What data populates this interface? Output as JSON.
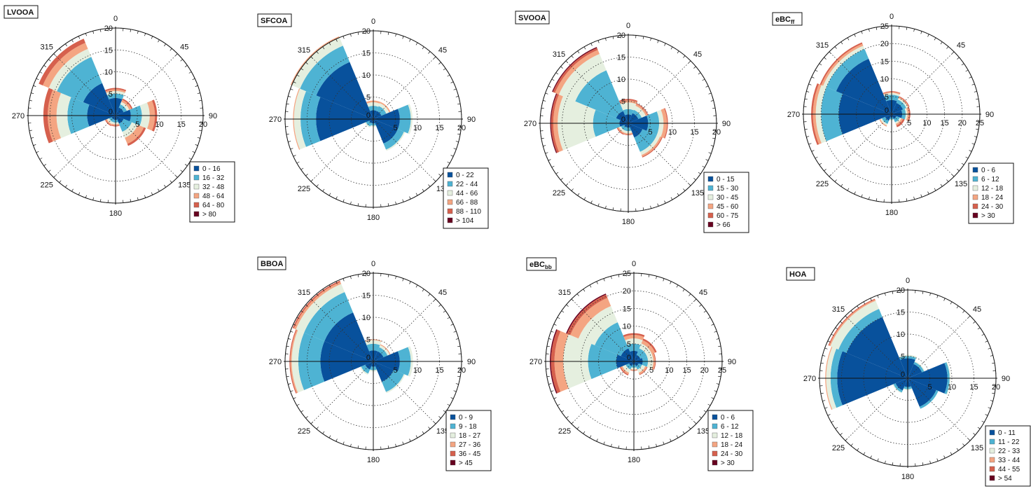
{
  "palette": [
    "#08519c",
    "#4eb3d3",
    "#e5efdf",
    "#f4a582",
    "#d6604d",
    "#67001f"
  ],
  "chart_data": [
    {
      "type": "polar-stacked-bar",
      "title": "LVOOA",
      "radial_ticks": [
        0,
        5,
        10,
        15,
        20
      ],
      "rmax": 20,
      "angle_labels": [
        "0",
        "45",
        "90",
        "135",
        "180",
        "225",
        "270",
        "315"
      ],
      "legend": [
        "0 - 16",
        "16 - 32",
        "32 - 48",
        "48 - 64",
        "64 - 80",
        "> 80"
      ],
      "sectors": [
        {
          "dir": 0,
          "values": [
            4.0,
            1.0,
            0.6,
            0.4,
            0.3,
            0
          ]
        },
        {
          "dir": 45,
          "values": [
            2.0,
            0.8,
            0.6,
            0.5,
            0.3,
            0
          ]
        },
        {
          "dir": 90,
          "values": [
            3.5,
            2.5,
            1.8,
            1.2,
            0.5,
            0
          ]
        },
        {
          "dir": 135,
          "values": [
            2.0,
            2.0,
            1.5,
            1.5,
            0.5,
            0
          ]
        },
        {
          "dir": 180,
          "values": [
            1.0,
            0.6,
            0.4,
            0.3,
            0.2,
            0
          ]
        },
        {
          "dir": 225,
          "values": [
            1.0,
            0.6,
            0.5,
            0.3,
            0.2,
            0
          ]
        },
        {
          "dir": 270,
          "values": [
            6.5,
            4.5,
            2.5,
            2.0,
            1.0,
            0
          ]
        },
        {
          "dir": 315,
          "values": [
            8.0,
            6.5,
            2.0,
            1.5,
            1.0,
            0
          ]
        }
      ]
    },
    {
      "type": "polar-stacked-bar",
      "title": "SFCOA",
      "radial_ticks": [
        0,
        5,
        10,
        15,
        20
      ],
      "rmax": 20,
      "angle_labels": [
        "0",
        "45",
        "90",
        "135",
        "180",
        "225",
        "270",
        "315"
      ],
      "legend": [
        "0 - 22",
        "22 - 44",
        "44 - 66",
        "66 - 88",
        "88 - 110",
        "> 104"
      ],
      "sectors": [
        {
          "dir": 0,
          "values": [
            2.0,
            1.0,
            0.8,
            0.4,
            0,
            0
          ]
        },
        {
          "dir": 45,
          "values": [
            2.0,
            1.2,
            0.7,
            0.3,
            0,
            0
          ]
        },
        {
          "dir": 90,
          "values": [
            6.0,
            2.5,
            0.4,
            0,
            0,
            0
          ]
        },
        {
          "dir": 135,
          "values": [
            6.0,
            1.5,
            0.3,
            0,
            0,
            0
          ]
        },
        {
          "dir": 180,
          "values": [
            1.0,
            0.5,
            0.3,
            0,
            0,
            0
          ]
        },
        {
          "dir": 225,
          "values": [
            1.0,
            0.8,
            0.3,
            0,
            0,
            0
          ]
        },
        {
          "dir": 270,
          "values": [
            13.0,
            3.5,
            1.5,
            0.2,
            0,
            0
          ]
        },
        {
          "dir": 315,
          "values": [
            14.0,
            4.0,
            2.0,
            0.3,
            0,
            0
          ]
        }
      ]
    },
    {
      "type": "polar-stacked-bar",
      "title": "SVOOA",
      "radial_ticks": [
        0,
        5,
        10,
        15,
        20
      ],
      "rmax": 20,
      "angle_labels": [
        "0",
        "45",
        "90",
        "135",
        "180",
        "225",
        "270",
        "315"
      ],
      "legend": [
        "0 - 15",
        "15 - 30",
        "30 - 45",
        "45 - 60",
        "60 - 75",
        "> 66"
      ],
      "sectors": [
        {
          "dir": 0,
          "values": [
            2.0,
            1.2,
            1.5,
            0.5,
            0.3,
            0
          ]
        },
        {
          "dir": 45,
          "values": [
            2.5,
            0.8,
            1.0,
            0.4,
            0.2,
            0
          ]
        },
        {
          "dir": 90,
          "values": [
            4.5,
            2.5,
            1.0,
            0.8,
            0.2,
            0
          ]
        },
        {
          "dir": 135,
          "values": [
            3.5,
            3.5,
            0.8,
            0.4,
            0.2,
            0
          ]
        },
        {
          "dir": 180,
          "values": [
            1.0,
            0.8,
            0.5,
            0.3,
            0.1,
            0
          ]
        },
        {
          "dir": 225,
          "values": [
            1.0,
            0.8,
            0.5,
            0.3,
            0.2,
            0
          ]
        },
        {
          "dir": 270,
          "values": [
            2.0,
            6.0,
            8.0,
            1.0,
            0.5,
            0.2
          ]
        },
        {
          "dir": 315,
          "values": [
            3.0,
            10.0,
            4.0,
            1.0,
            0.5,
            0.2
          ]
        }
      ]
    },
    {
      "type": "polar-stacked-bar",
      "title": "eBC",
      "title_sub": "ff",
      "radial_ticks": [
        0,
        5,
        10,
        15,
        20,
        25
      ],
      "rmax": 25,
      "angle_labels": [
        "0",
        "45",
        "90",
        "135",
        "180",
        "225",
        "270",
        "315"
      ],
      "legend": [
        "0 - 6",
        "6 - 12",
        "12 - 18",
        "18 - 24",
        "24 - 30",
        "> 30"
      ],
      "sectors": [
        {
          "dir": 0,
          "values": [
            4.0,
            1.5,
            0.5,
            0.3,
            0.2,
            0
          ]
        },
        {
          "dir": 45,
          "values": [
            3.5,
            1.0,
            0.5,
            0.3,
            0.2,
            0
          ]
        },
        {
          "dir": 90,
          "values": [
            3.0,
            1.0,
            0.5,
            0.5,
            0.3,
            0
          ]
        },
        {
          "dir": 135,
          "values": [
            1.5,
            1.0,
            0.5,
            0.5,
            0.5,
            0
          ]
        },
        {
          "dir": 180,
          "values": [
            1.0,
            0.5,
            0.3,
            0,
            0,
            0
          ]
        },
        {
          "dir": 225,
          "values": [
            2.0,
            1.0,
            0.5,
            0.3,
            0,
            0
          ]
        },
        {
          "dir": 270,
          "values": [
            15.0,
            5.0,
            1.5,
            0.8,
            0.5,
            0
          ]
        },
        {
          "dir": 315,
          "values": [
            17.0,
            3.0,
            1.0,
            0.6,
            0.4,
            0
          ]
        }
      ]
    },
    {
      "type": "polar-stacked-bar",
      "title": "BBOA",
      "radial_ticks": [
        0,
        5,
        10,
        15,
        20
      ],
      "rmax": 20,
      "angle_labels": [
        "0",
        "45",
        "90",
        "135",
        "180",
        "225",
        "270",
        "315"
      ],
      "legend": [
        "0 - 9",
        "9 - 18",
        "18 - 27",
        "27 - 36",
        "36 - 45",
        "> 45"
      ],
      "sectors": [
        {
          "dir": 0,
          "values": [
            2.5,
            1.5,
            0.8,
            0.2,
            0,
            0
          ]
        },
        {
          "dir": 45,
          "values": [
            2.5,
            1.0,
            0.5,
            0.2,
            0,
            0
          ]
        },
        {
          "dir": 90,
          "values": [
            6.0,
            2.5,
            0.5,
            0,
            0,
            0
          ]
        },
        {
          "dir": 135,
          "values": [
            5.0,
            2.5,
            0.3,
            0,
            0,
            0
          ]
        },
        {
          "dir": 180,
          "values": [
            1.2,
            0.8,
            0.3,
            0,
            0,
            0
          ]
        },
        {
          "dir": 225,
          "values": [
            2.0,
            1.0,
            0.3,
            0,
            0,
            0
          ]
        },
        {
          "dir": 270,
          "values": [
            12.0,
            5.0,
            1.5,
            0.3,
            0.2,
            0
          ]
        },
        {
          "dir": 315,
          "values": [
            12.0,
            5.0,
            2.0,
            0.5,
            0.3,
            0
          ]
        }
      ]
    },
    {
      "type": "polar-stacked-bar",
      "title": "eBC",
      "title_sub": "bb",
      "radial_ticks": [
        0,
        5,
        10,
        15,
        20,
        25
      ],
      "rmax": 25,
      "angle_labels": [
        "0",
        "45",
        "90",
        "135",
        "180",
        "225",
        "270",
        "315"
      ],
      "legend": [
        "0 - 6",
        "6 - 12",
        "12 - 18",
        "18 - 24",
        "24 - 30",
        "> 30"
      ],
      "sectors": [
        {
          "dir": 0,
          "values": [
            3.0,
            2.0,
            1.5,
            1.0,
            0.5,
            0
          ]
        },
        {
          "dir": 45,
          "values": [
            2.0,
            2.0,
            1.5,
            1.0,
            0.5,
            0
          ]
        },
        {
          "dir": 90,
          "values": [
            2.5,
            1.5,
            1.5,
            0.5,
            0.2,
            0
          ]
        },
        {
          "dir": 135,
          "values": [
            1.5,
            1.0,
            1.0,
            0.5,
            0.2,
            0
          ]
        },
        {
          "dir": 180,
          "values": [
            1.0,
            0.8,
            0.5,
            0.3,
            0.1,
            0
          ]
        },
        {
          "dir": 225,
          "values": [
            1.5,
            1.0,
            1.0,
            0.5,
            0.3,
            0
          ]
        },
        {
          "dir": 270,
          "values": [
            5.0,
            8.0,
            7.0,
            2.5,
            1.0,
            0.3
          ]
        },
        {
          "dir": 315,
          "values": [
            4.0,
            8.0,
            5.0,
            2.5,
            1.0,
            0.3
          ]
        }
      ]
    },
    {
      "type": "polar-stacked-bar",
      "title": "HOA",
      "radial_ticks": [
        0,
        5,
        10,
        15,
        20
      ],
      "rmax": 20,
      "angle_labels": [
        "0",
        "45",
        "90",
        "135",
        "180",
        "225",
        "270",
        "315"
      ],
      "legend": [
        "0 - 11",
        "11 - 22",
        "22 - 33",
        "33 - 44",
        "44 - 55",
        "> 54"
      ],
      "sectors": [
        {
          "dir": 0,
          "values": [
            4.5,
            0.5,
            0.3,
            0,
            0,
            0
          ]
        },
        {
          "dir": 45,
          "values": [
            3.5,
            0.5,
            0.2,
            0,
            0,
            0
          ]
        },
        {
          "dir": 90,
          "values": [
            9.0,
            0.5,
            0.2,
            0,
            0,
            0
          ]
        },
        {
          "dir": 135,
          "values": [
            7.0,
            0.5,
            0,
            0,
            0,
            0
          ]
        },
        {
          "dir": 180,
          "values": [
            2.0,
            0.5,
            0.2,
            0,
            0,
            0
          ]
        },
        {
          "dir": 225,
          "values": [
            3.0,
            0.5,
            0.2,
            0,
            0,
            0
          ]
        },
        {
          "dir": 270,
          "values": [
            16.0,
            1.5,
            1.0,
            0.2,
            0,
            0
          ]
        },
        {
          "dir": 315,
          "values": [
            15.0,
            2.0,
            2.0,
            0.3,
            0.2,
            0
          ]
        }
      ]
    }
  ]
}
